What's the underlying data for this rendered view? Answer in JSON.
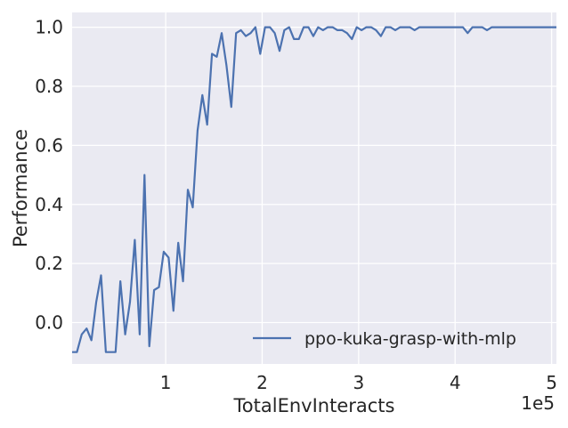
{
  "chart_data": {
    "type": "line",
    "title": "",
    "xlabel": "TotalEnvInteracts",
    "ylabel": "Performance",
    "x_offset_label": "1e5",
    "xlim": [
      0.03,
      5.05
    ],
    "ylim": [
      -0.14,
      1.05
    ],
    "x_ticks": [
      1,
      2,
      3,
      4,
      5
    ],
    "y_ticks": [
      0.0,
      0.2,
      0.4,
      0.6,
      0.8,
      1.0
    ],
    "x_tick_labels": [
      "1",
      "2",
      "3",
      "4",
      "5"
    ],
    "y_tick_labels": [
      "0.0",
      "0.2",
      "0.4",
      "0.6",
      "0.8",
      "1.0"
    ],
    "grid": true,
    "background_color": "#eaeaf2",
    "legend_position": "lower right",
    "series": [
      {
        "name": "ppo-kuka-grasp-with-mlp",
        "color": "#4c72b0",
        "x": [
          0.03,
          0.08,
          0.13,
          0.18,
          0.23,
          0.28,
          0.33,
          0.38,
          0.43,
          0.48,
          0.53,
          0.58,
          0.63,
          0.68,
          0.73,
          0.78,
          0.83,
          0.88,
          0.93,
          0.98,
          1.03,
          1.08,
          1.13,
          1.18,
          1.23,
          1.28,
          1.33,
          1.38,
          1.43,
          1.48,
          1.53,
          1.58,
          1.63,
          1.68,
          1.73,
          1.78,
          1.83,
          1.88,
          1.93,
          1.98,
          2.03,
          2.08,
          2.13,
          2.18,
          2.23,
          2.28,
          2.33,
          2.38,
          2.43,
          2.48,
          2.53,
          2.58,
          2.63,
          2.68,
          2.73,
          2.78,
          2.83,
          2.88,
          2.93,
          2.98,
          3.03,
          3.08,
          3.13,
          3.18,
          3.23,
          3.28,
          3.33,
          3.38,
          3.43,
          3.48,
          3.53,
          3.58,
          3.63,
          3.68,
          3.73,
          3.78,
          3.83,
          3.88,
          3.93,
          3.98,
          4.03,
          4.08,
          4.13,
          4.18,
          4.23,
          4.28,
          4.33,
          4.38,
          4.43,
          4.48,
          4.53,
          4.58,
          4.63,
          4.68,
          4.73,
          4.78,
          4.83,
          4.88,
          4.93,
          4.98,
          5.03,
          5.05
        ],
        "y": [
          -0.1,
          -0.1,
          -0.04,
          -0.02,
          -0.06,
          0.07,
          0.16,
          -0.1,
          -0.1,
          -0.1,
          0.14,
          -0.04,
          0.07,
          0.28,
          -0.04,
          0.5,
          -0.08,
          0.11,
          0.12,
          0.24,
          0.22,
          0.04,
          0.27,
          0.14,
          0.45,
          0.39,
          0.65,
          0.77,
          0.67,
          0.91,
          0.9,
          0.98,
          0.87,
          0.73,
          0.98,
          0.99,
          0.97,
          0.98,
          1.0,
          0.91,
          1.0,
          1.0,
          0.98,
          0.92,
          0.99,
          1.0,
          0.96,
          0.96,
          1.0,
          1.0,
          0.97,
          1.0,
          0.99,
          1.0,
          1.0,
          0.99,
          0.99,
          0.98,
          0.96,
          1.0,
          0.99,
          1.0,
          1.0,
          0.99,
          0.97,
          1.0,
          1.0,
          0.99,
          1.0,
          1.0,
          1.0,
          0.99,
          1.0,
          1.0,
          1.0,
          1.0,
          1.0,
          1.0,
          1.0,
          1.0,
          1.0,
          1.0,
          0.98,
          1.0,
          1.0,
          1.0,
          0.99,
          1.0,
          1.0,
          1.0,
          1.0,
          1.0,
          1.0,
          1.0,
          1.0,
          1.0,
          1.0,
          1.0,
          1.0,
          1.0,
          1.0,
          1.0
        ]
      }
    ]
  }
}
